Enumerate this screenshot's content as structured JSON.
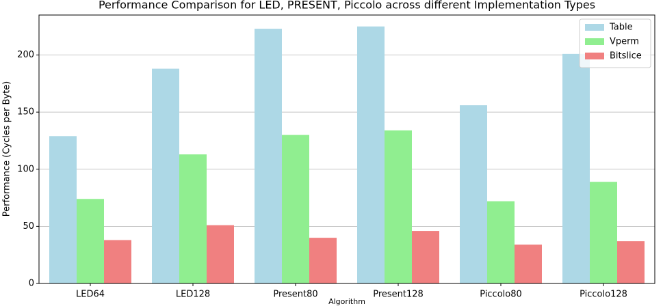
{
  "chart_data": {
    "type": "bar",
    "title": "Performance Comparison for LED, PRESENT, Piccolo across different Implementation Types",
    "x_label": "Algorithm",
    "y_label": "Performance (Cycles per Byte)",
    "categories": [
      "LED64",
      "LED128",
      "Present80",
      "Present128",
      "Piccolo80",
      "Piccolo128"
    ],
    "series": [
      {
        "name": "Table",
        "color": "#add8e6",
        "values": [
          129,
          188,
          223,
          225,
          156,
          201
        ]
      },
      {
        "name": "Vperm",
        "color": "#90ee90",
        "values": [
          74,
          113,
          130,
          134,
          72,
          89
        ]
      },
      {
        "name": "Bitslice",
        "color": "#f08080",
        "values": [
          38,
          51,
          40,
          46,
          34,
          37
        ]
      }
    ],
    "ylim": [
      0,
      235
    ],
    "yticks": [
      0,
      50,
      100,
      150,
      200
    ],
    "grid": true,
    "legend": "upper right"
  }
}
